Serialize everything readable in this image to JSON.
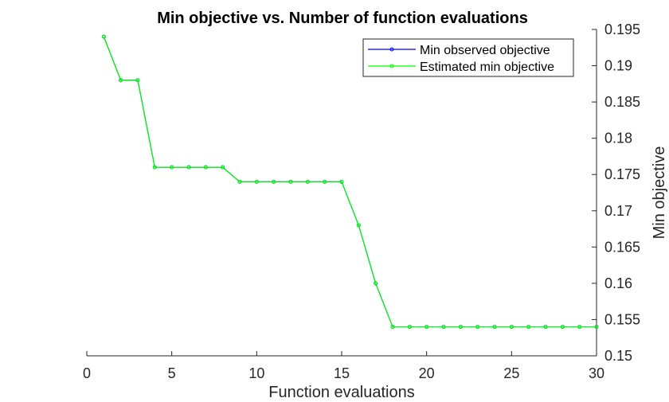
{
  "chart_data": {
    "type": "line",
    "title": "Min objective vs. Number of function evaluations",
    "xlabel": "Function evaluations",
    "ylabel": "Min objective",
    "xlim": [
      0,
      30
    ],
    "ylim": [
      0.15,
      0.195
    ],
    "x_ticks": [
      "0",
      "5",
      "10",
      "15",
      "20",
      "25",
      "30"
    ],
    "y_ticks": [
      "0.15",
      "0.155",
      "0.16",
      "0.165",
      "0.17",
      "0.175",
      "0.18",
      "0.185",
      "0.19",
      "0.195"
    ],
    "y_axis_position": "right",
    "grid": false,
    "legend_position": "top-right",
    "x": [
      1,
      2,
      3,
      4,
      5,
      6,
      7,
      8,
      9,
      10,
      11,
      12,
      13,
      14,
      15,
      16,
      17,
      18,
      19,
      20,
      21,
      22,
      23,
      24,
      25,
      26,
      27,
      28,
      29,
      30
    ],
    "series": [
      {
        "name": "Min observed objective",
        "color": "#0000ff",
        "values": [
          0.194,
          0.188,
          0.188,
          0.176,
          0.176,
          0.176,
          0.176,
          0.176,
          0.174,
          0.174,
          0.174,
          0.174,
          0.174,
          0.174,
          0.174,
          0.168,
          0.16,
          0.154,
          0.154,
          0.154,
          0.154,
          0.154,
          0.154,
          0.154,
          0.154,
          0.154,
          0.154,
          0.154,
          0.154,
          0.154
        ]
      },
      {
        "name": "Estimated min objective",
        "color": "#00ff00",
        "values": [
          0.194,
          0.188,
          0.188,
          0.176,
          0.176,
          0.176,
          0.176,
          0.176,
          0.174,
          0.174,
          0.174,
          0.174,
          0.174,
          0.174,
          0.174,
          0.168,
          0.16,
          0.154,
          0.154,
          0.154,
          0.154,
          0.154,
          0.154,
          0.154,
          0.154,
          0.154,
          0.154,
          0.154,
          0.154,
          0.154
        ]
      }
    ]
  }
}
